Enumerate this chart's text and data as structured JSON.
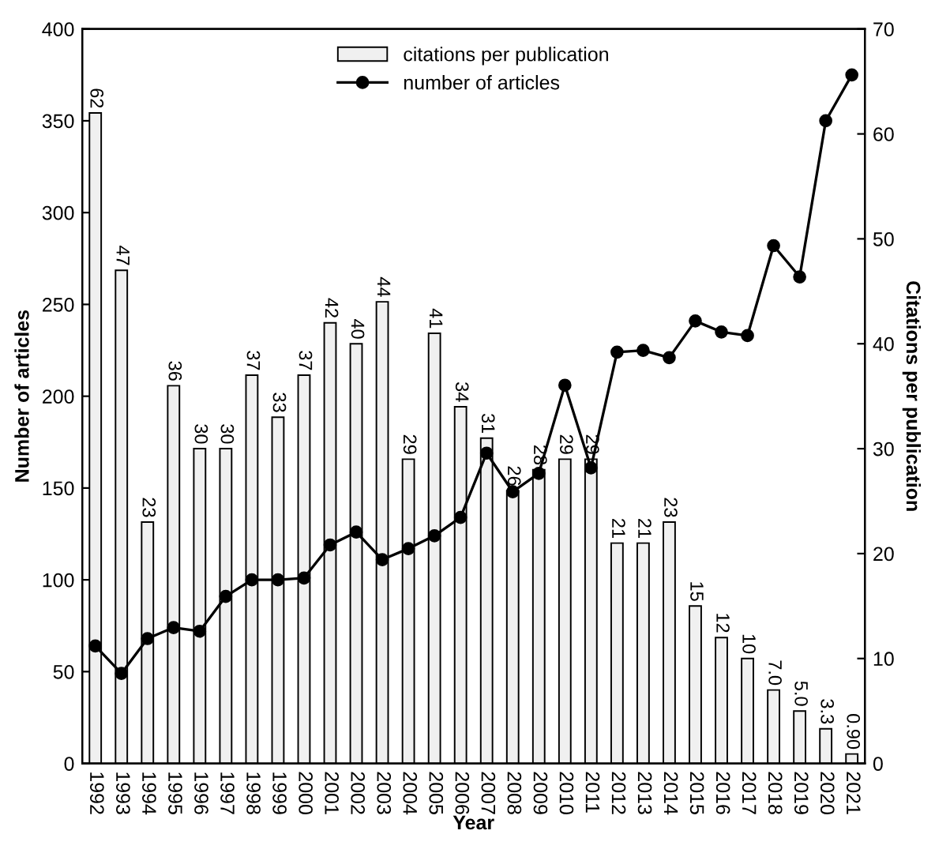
{
  "chart_data": {
    "type": "bar",
    "xlabel": "Year",
    "ylabel": "Number of articles",
    "y2label": "Citations per publication",
    "categories": [
      "1992",
      "1993",
      "1994",
      "1995",
      "1996",
      "1997",
      "1998",
      "1999",
      "2000",
      "2001",
      "2002",
      "2003",
      "2004",
      "2005",
      "2006",
      "2007",
      "2008",
      "2009",
      "2010",
      "2011",
      "2012",
      "2013",
      "2014",
      "2015",
      "2016",
      "2017",
      "2018",
      "2019",
      "2020",
      "2021"
    ],
    "series": [
      {
        "name": "citations per publication",
        "axis": "y2",
        "color": "#f0f0f0",
        "values": [
          62,
          47,
          23,
          36,
          30,
          30,
          37,
          33,
          37,
          42,
          40,
          44,
          29,
          41,
          34,
          31,
          26,
          28,
          29,
          29,
          21,
          21,
          23,
          15,
          12,
          10,
          7.0,
          5.0,
          3.3,
          0.9
        ],
        "value_labels": [
          "62",
          "47",
          "23",
          "36",
          "30",
          "30",
          "37",
          "33",
          "37",
          "42",
          "40",
          "44",
          "29",
          "41",
          "34",
          "31",
          "26",
          "28",
          "29",
          "29",
          "21",
          "21",
          "23",
          "15",
          "12",
          "10",
          "7.0",
          "5.0",
          "3.3",
          "0.90"
        ]
      },
      {
        "name": "number of articles",
        "type": "line",
        "color": "#000000",
        "marker": "circle",
        "values": [
          64,
          49,
          68,
          74,
          72,
          91,
          100,
          100,
          101,
          119,
          126,
          111,
          117,
          124,
          134,
          169,
          148,
          158,
          206,
          161,
          224,
          225,
          221,
          241,
          235,
          233,
          282,
          265,
          350,
          375
        ]
      }
    ],
    "ylim": [
      0,
      400
    ],
    "yticks": [
      0,
      50,
      100,
      150,
      200,
      250,
      300,
      350,
      400
    ],
    "y2lim": [
      0,
      70
    ],
    "y2ticks": [
      0,
      10,
      20,
      30,
      40,
      50,
      60,
      70
    ],
    "legend": "top",
    "grid": false
  }
}
